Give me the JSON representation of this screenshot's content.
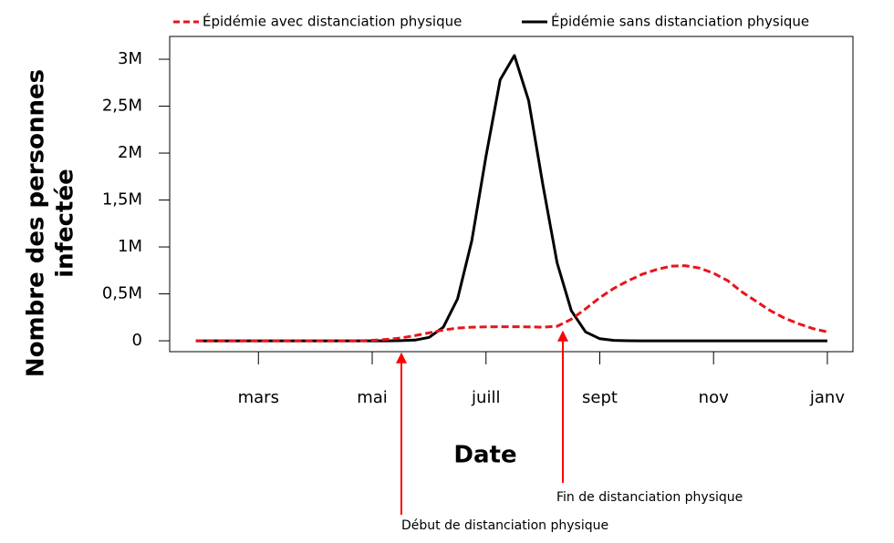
{
  "chart_data": {
    "type": "line",
    "ylabel": [
      "Nombre des personnes",
      "infectée"
    ],
    "xlabel": "Date",
    "x": [
      1.9,
      2,
      2.25,
      2.5,
      2.75,
      3,
      3.25,
      3.5,
      3.75,
      4,
      4.25,
      4.5,
      4.75,
      5,
      5.25,
      5.5,
      5.75,
      6,
      6.25,
      6.5,
      6.75,
      7,
      7.25,
      7.5,
      7.75,
      8,
      8.25,
      8.5,
      8.75,
      9,
      9.25,
      9.5,
      9.75,
      10,
      10.25,
      10.5,
      10.75,
      11,
      11.25,
      11.5,
      11.75,
      12,
      12.25,
      12.5,
      12.75,
      13
    ],
    "series": [
      {
        "name": "Épidémie avec distanciation physique",
        "color": "#e8141b",
        "linestyle": "dashed",
        "values": [
          0,
          0,
          0,
          0,
          0,
          0,
          0,
          0,
          0,
          0,
          0,
          0,
          0,
          5000,
          15000,
          30000,
          55000,
          85000,
          115000,
          135000,
          145000,
          148000,
          150000,
          150000,
          148000,
          145000,
          155000,
          230000,
          340000,
          460000,
          560000,
          640000,
          710000,
          760000,
          795000,
          800000,
          775000,
          720000,
          640000,
          520000,
          420000,
          320000,
          240000,
          180000,
          130000,
          95000
        ]
      },
      {
        "name": "Épidémie sans distanciation physique",
        "color": "#000000",
        "linestyle": "solid",
        "values": [
          0,
          0,
          0,
          0,
          0,
          0,
          0,
          0,
          0,
          0,
          0,
          0,
          0,
          0,
          0,
          1000,
          6900,
          36000,
          145000,
          447000,
          1067000,
          1963000,
          2782000,
          3040000,
          2560000,
          1662000,
          831000,
          320000,
          95000,
          21800,
          3900,
          500,
          0,
          0,
          0,
          0,
          0,
          0,
          0,
          0,
          0,
          0,
          0,
          0,
          0,
          0
        ]
      }
    ],
    "xlim": [
      1.44,
      13.45
    ],
    "xticks": [
      {
        "value": 3,
        "label": "mars"
      },
      {
        "value": 5,
        "label": "mai"
      },
      {
        "value": 7,
        "label": "juill"
      },
      {
        "value": 9,
        "label": "sept"
      },
      {
        "value": 11,
        "label": "nov"
      },
      {
        "value": 13,
        "label": "janv"
      }
    ],
    "ylim": [
      -116000,
      3243000
    ],
    "yticks": [
      0,
      {
        "value": 500000,
        "label": "0,5M"
      },
      {
        "value": 1000000,
        "label": "1M"
      },
      {
        "value": 1500000,
        "label": "1,5M"
      },
      {
        "value": 2000000,
        "label": "2M"
      },
      {
        "value": 2500000,
        "label": "2,5M"
      },
      {
        "value": 3000000,
        "label": "3M"
      }
    ],
    "annotations": [
      "Début de distanciation physique",
      "Fin de distanciation physique"
    ]
  }
}
